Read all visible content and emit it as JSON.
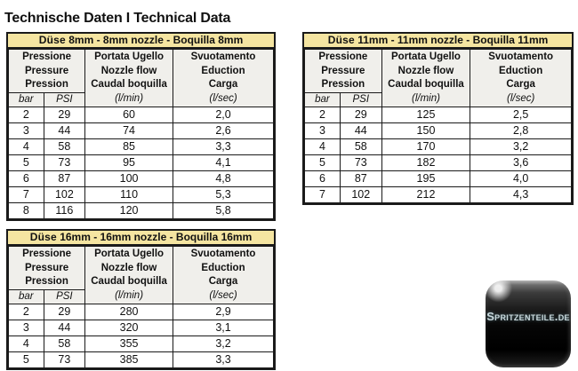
{
  "page": {
    "title": "Technische Daten I Technical Data"
  },
  "colors": {
    "band_yellow": "#f5e5a1",
    "header_gray": "#f0efeb",
    "border_black": "#1a1a1a",
    "logo_text": "#cbdade"
  },
  "column_headers": {
    "pressure": [
      "Pressione",
      "Pressure",
      "Pression"
    ],
    "flow": [
      "Portata Ugello",
      "Nozzle flow",
      "Caudal boquilla"
    ],
    "eduction": [
      "Svuotamento",
      "Eduction",
      "Carga"
    ],
    "units": [
      "bar",
      "PSI",
      "(l/min)",
      "(l/sec)"
    ]
  },
  "tables": [
    {
      "title_bold": "Düse",
      "title_rest": " 8mm - 8mm nozzle - Boquilla 8mm",
      "rows": [
        [
          "2",
          "29",
          "60",
          "2,0"
        ],
        [
          "3",
          "44",
          "74",
          "2,6"
        ],
        [
          "4",
          "58",
          "85",
          "3,3"
        ],
        [
          "5",
          "73",
          "95",
          "4,1"
        ],
        [
          "6",
          "87",
          "100",
          "4,8"
        ],
        [
          "7",
          "102",
          "110",
          "5,3"
        ],
        [
          "8",
          "116",
          "120",
          "5,8"
        ]
      ]
    },
    {
      "title_bold": "Düse",
      "title_rest": " 11mm - 11mm nozzle - Boquilla 11mm",
      "rows": [
        [
          "2",
          "29",
          "125",
          "2,5"
        ],
        [
          "3",
          "44",
          "150",
          "2,8"
        ],
        [
          "4",
          "58",
          "170",
          "3,2"
        ],
        [
          "5",
          "73",
          "182",
          "3,6"
        ],
        [
          "6",
          "87",
          "195",
          "4,0"
        ],
        [
          "7",
          "102",
          "212",
          "4,3"
        ]
      ]
    },
    {
      "title_bold": "Düse",
      "title_rest": " 16mm - 16mm nozzle - Boquilla 16mm",
      "rows": [
        [
          "2",
          "29",
          "280",
          "2,9"
        ],
        [
          "3",
          "44",
          "320",
          "3,1"
        ],
        [
          "4",
          "58",
          "355",
          "3,2"
        ],
        [
          "5",
          "73",
          "385",
          "3,3"
        ]
      ]
    }
  ],
  "logo": {
    "text": "Spritzenteile.de"
  }
}
